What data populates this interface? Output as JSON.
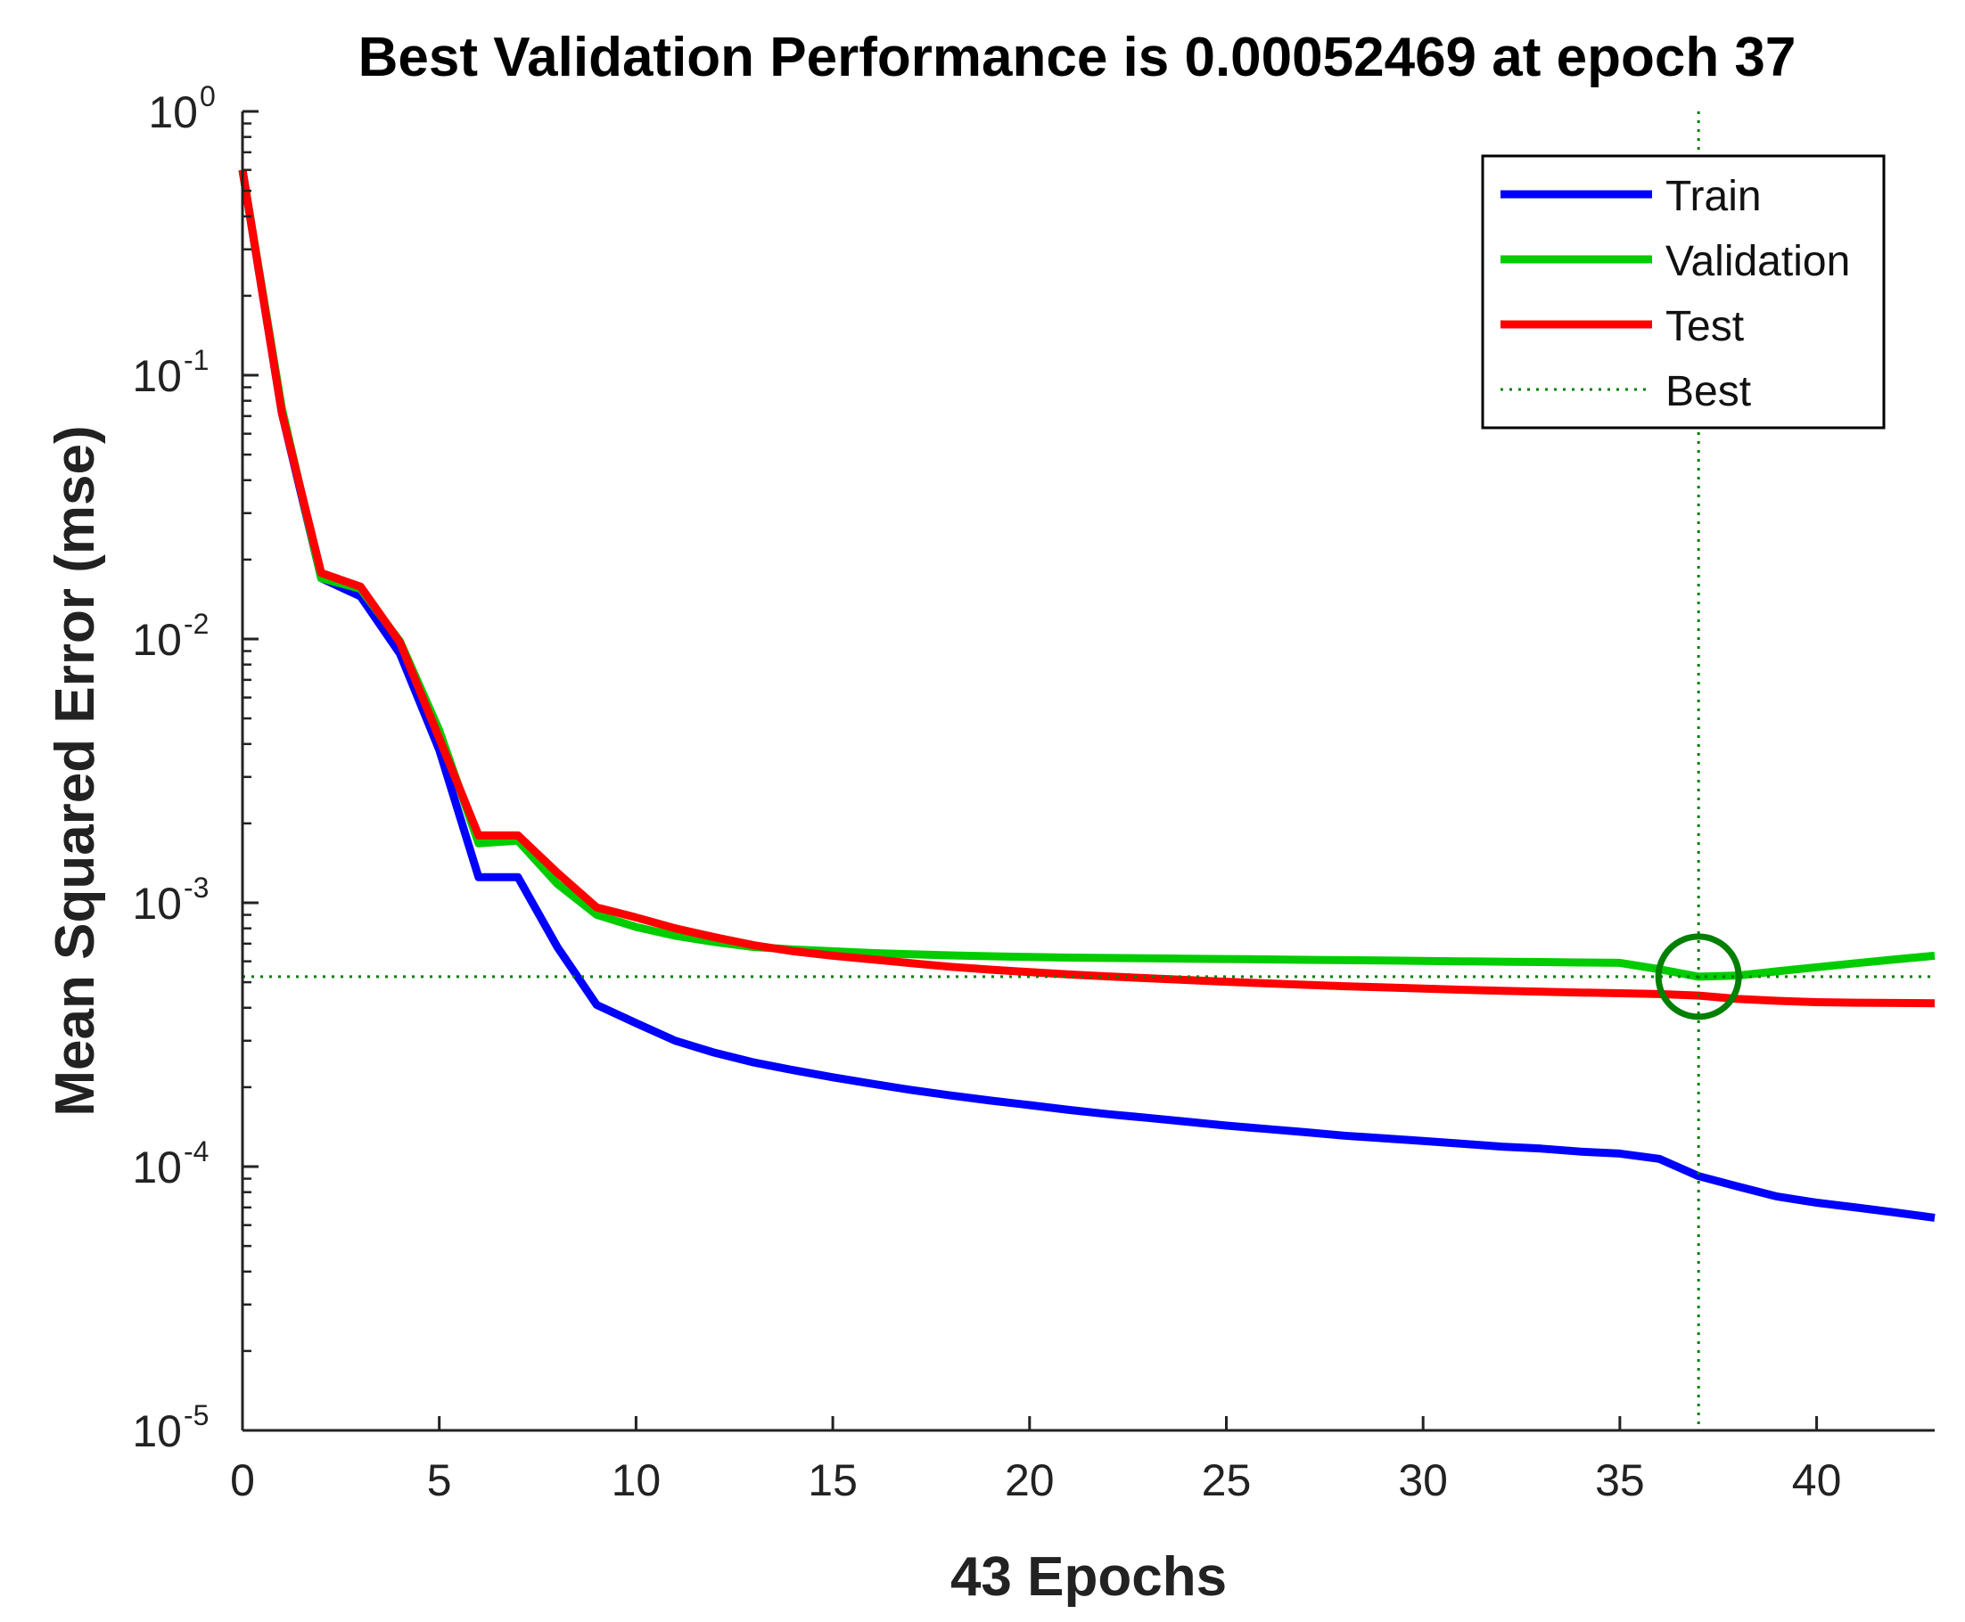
{
  "chart_data": {
    "type": "line",
    "title": "Best Validation Performance is 0.00052469 at epoch 37",
    "xlabel": "43 Epochs",
    "ylabel": "Mean Squared Error  (mse)",
    "xlim": [
      0,
      43
    ],
    "ylim": [
      1e-05,
      1
    ],
    "yscale": "log",
    "grid": false,
    "legend_position": "top-right",
    "x_ticks": [
      "0",
      "5",
      "10",
      "15",
      "20",
      "25",
      "30",
      "35",
      "40"
    ],
    "y_ticks": [
      {
        "base": "10",
        "exp": "0"
      },
      {
        "base": "10",
        "exp": "-1"
      },
      {
        "base": "10",
        "exp": "-2"
      },
      {
        "base": "10",
        "exp": "-3"
      },
      {
        "base": "10",
        "exp": "-4"
      },
      {
        "base": "10",
        "exp": "-5"
      }
    ],
    "epochs": [
      0,
      1,
      2,
      3,
      4,
      5,
      6,
      7,
      8,
      9,
      10,
      11,
      12,
      13,
      14,
      15,
      16,
      17,
      18,
      19,
      20,
      21,
      22,
      23,
      24,
      25,
      26,
      27,
      28,
      29,
      30,
      31,
      32,
      33,
      34,
      35,
      36,
      37,
      38,
      39,
      40,
      41,
      42,
      43
    ],
    "series": [
      {
        "name": "Train",
        "color": "#0000ff",
        "values": [
          0.6,
          0.072,
          0.017,
          0.0145,
          0.0088,
          0.0038,
          0.00125,
          0.00125,
          0.00068,
          0.00041,
          0.00035,
          0.0003,
          0.00027,
          0.000248,
          0.000232,
          0.000218,
          0.000206,
          0.000195,
          0.000186,
          0.000178,
          0.000171,
          0.000164,
          0.000158,
          0.000153,
          0.000148,
          0.000143,
          0.000139,
          0.000135,
          0.000131,
          0.000128,
          0.000125,
          0.000122,
          0.000119,
          0.000117,
          0.000114,
          0.000112,
          0.000107,
          9.2e-05,
          8.4e-05,
          7.7e-05,
          7.3e-05,
          7e-05,
          6.7e-05,
          6.4e-05
        ]
      },
      {
        "name": "Validation",
        "color": "#00cc00",
        "values": [
          0.6,
          0.075,
          0.017,
          0.0155,
          0.0098,
          0.0045,
          0.00168,
          0.00172,
          0.00118,
          0.0009,
          0.00081,
          0.00075,
          0.00071,
          0.00068,
          0.000665,
          0.000655,
          0.000645,
          0.000638,
          0.000632,
          0.000627,
          0.000623,
          0.00062,
          0.000618,
          0.000616,
          0.000614,
          0.000612,
          0.00061,
          0.000608,
          0.000606,
          0.000604,
          0.000602,
          0.0006,
          0.000598,
          0.000596,
          0.000594,
          0.000592,
          0.00056,
          0.00052469,
          0.00053,
          0.00055,
          0.00057,
          0.00059,
          0.00061,
          0.00063
        ]
      },
      {
        "name": "Test",
        "color": "#ff0000",
        "values": [
          0.6,
          0.072,
          0.0178,
          0.0158,
          0.0097,
          0.0042,
          0.0018,
          0.0018,
          0.0013,
          0.00096,
          0.00088,
          0.0008,
          0.00074,
          0.00069,
          0.000655,
          0.00063,
          0.00061,
          0.00059,
          0.000572,
          0.000558,
          0.000546,
          0.000535,
          0.000526,
          0.000518,
          0.00051,
          0.000502,
          0.000495,
          0.000489,
          0.000483,
          0.000478,
          0.000473,
          0.000468,
          0.000464,
          0.00046,
          0.000457,
          0.000454,
          0.000451,
          0.000445,
          0.000432,
          0.000425,
          0.00042,
          0.000418,
          0.000417,
          0.000416
        ]
      }
    ],
    "best": {
      "name": "Best",
      "epoch": 37,
      "value": 0.00052469,
      "color": "#008000"
    }
  }
}
